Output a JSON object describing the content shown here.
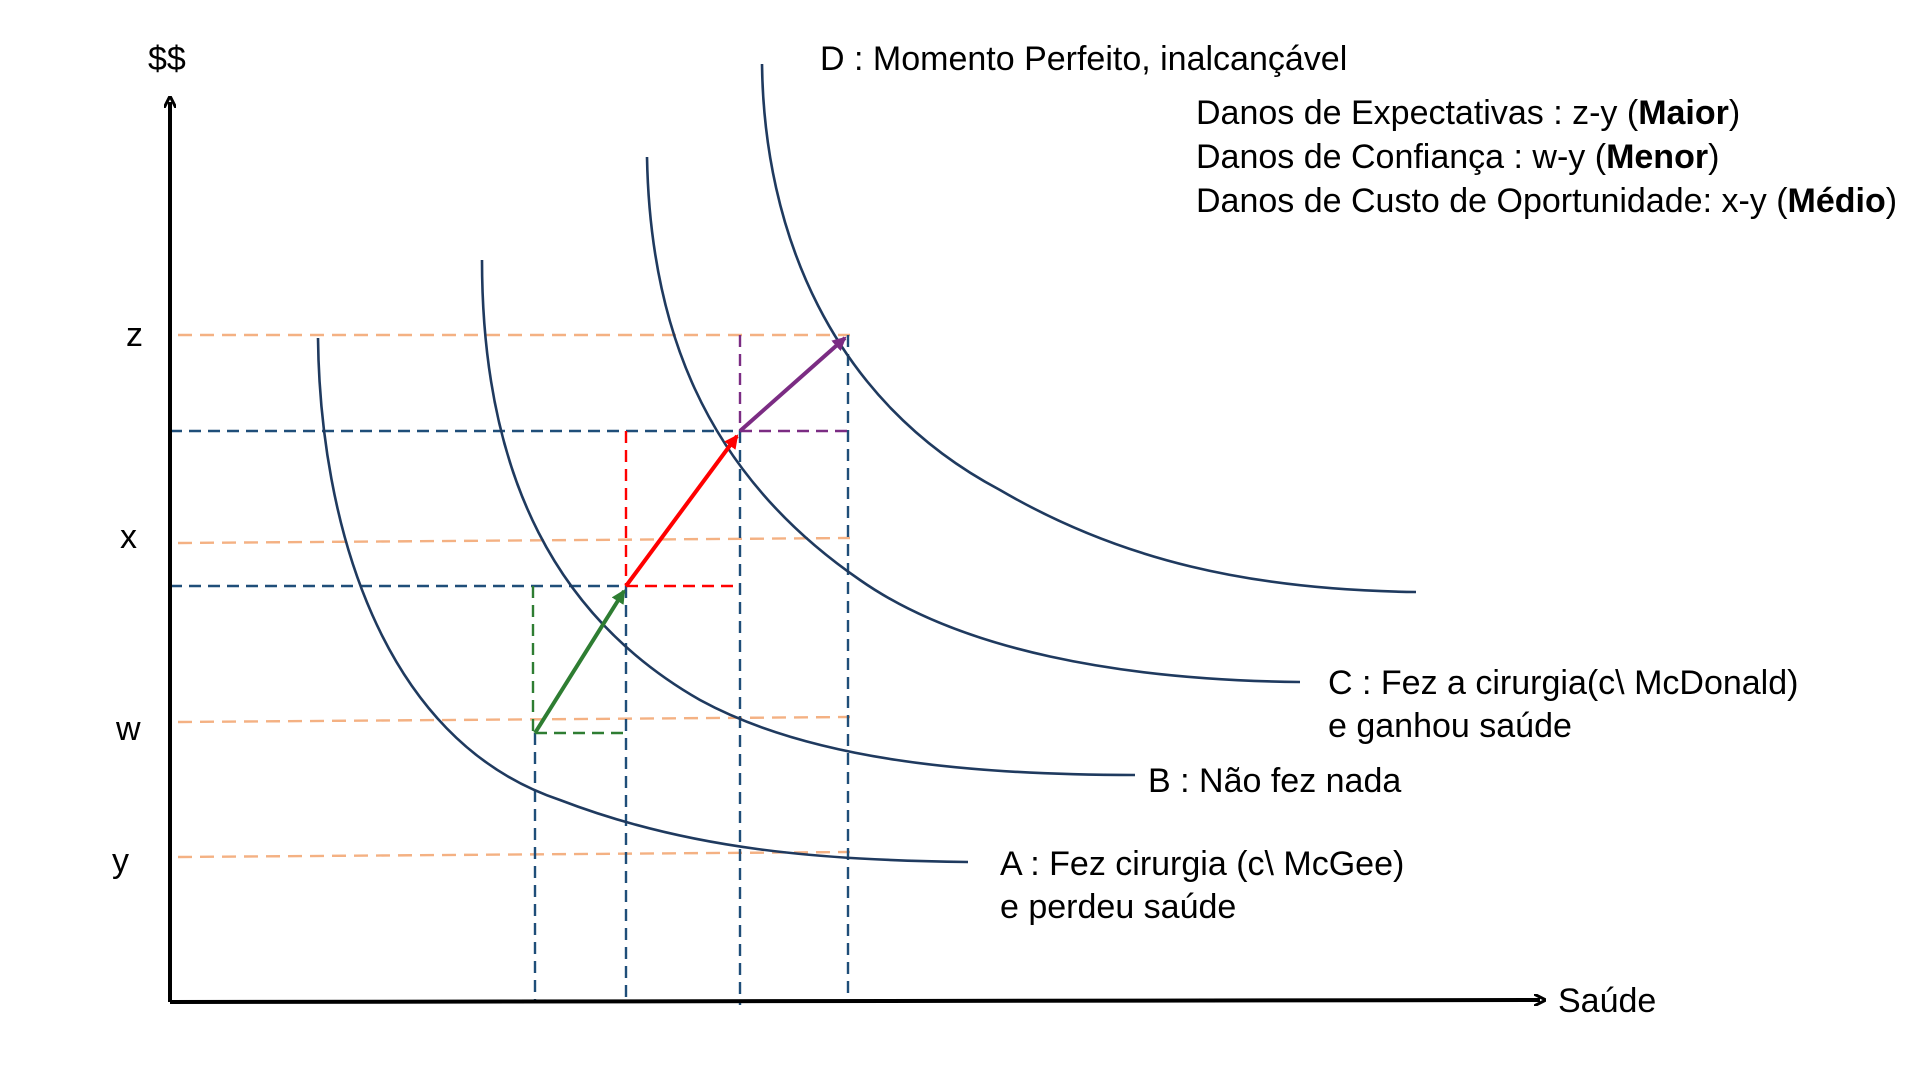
{
  "axes": {
    "y_label": "$$",
    "x_label": "Saúde",
    "y_ticks": [
      "z",
      "x",
      "w",
      "y"
    ]
  },
  "curves": [
    {
      "id": "A",
      "line1": "A : Fez cirurgia (c\\ McGee)",
      "line2": "e perdeu saúde"
    },
    {
      "id": "B",
      "line1": "B : Não fez nada"
    },
    {
      "id": "C",
      "line1": "C : Fez a cirurgia(c\\  McDonald)",
      "line2": "e ganhou saúde"
    },
    {
      "id": "D",
      "line1": "D : Momento Perfeito, inalcançável"
    }
  ],
  "damages": [
    {
      "text": "Danos de Expectativas : z-y (",
      "bold": "Maior",
      "close": ")"
    },
    {
      "text": "Danos de Confiança : w-y (",
      "bold": "Menor",
      "close": ")"
    },
    {
      "text": "Danos de Custo de Oportunidade: x-y (",
      "bold": "Médio",
      "close": ")"
    }
  ],
  "colors": {
    "curve": "#1f3a5f",
    "guide_orange": "#f4b183",
    "guide_blue": "#1f4e79",
    "arrow_green": "#2e7d32",
    "arrow_red": "#ff0000",
    "arrow_purple": "#7b2c83"
  }
}
